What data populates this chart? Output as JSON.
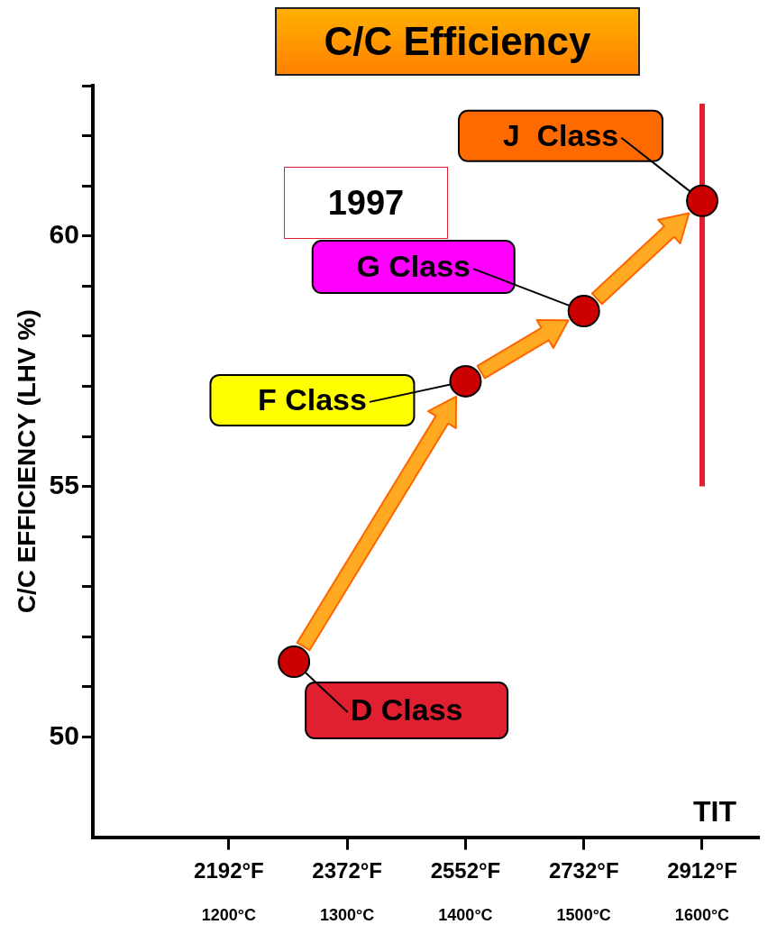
{
  "chart_data": {
    "type": "scatter",
    "title": "C/C Efficiency",
    "xlabel": "TIT",
    "ylabel": "C/C EFFICIENCY (LHV %)",
    "x": [
      1255,
      1400,
      1500,
      1600
    ],
    "series": [
      {
        "color": "#cc0000",
        "values": [
          51.5,
          57.1,
          58.5,
          60.7
        ]
      }
    ],
    "xlim": [
      1085,
      1648
    ],
    "xticks": [
      {
        "value": 1200,
        "label": "1200°C"
      },
      {
        "value": 1300,
        "label": "1300°C"
      },
      {
        "value": 1400,
        "label": "1400°C"
      },
      {
        "value": 1500,
        "label": "1500°C"
      },
      {
        "value": 1600,
        "label": "1600°C"
      }
    ],
    "x2lim": [
      1985,
      2998.4
    ],
    "x2ticks": [
      {
        "value": 2192,
        "label": "2192°F"
      },
      {
        "value": 2372,
        "label": "2372°F"
      },
      {
        "value": 2552,
        "label": "2552°F"
      },
      {
        "value": 2732,
        "label": "2732°F"
      },
      {
        "value": 2912,
        "label": "2912°F"
      }
    ],
    "ylim": [
      48,
      63
    ],
    "yticks": [
      50,
      {
        "value": 51,
        "label": null
      },
      {
        "value": 52,
        "label": null
      },
      {
        "value": 53,
        "label": null
      },
      {
        "value": 54,
        "label": null
      },
      55,
      {
        "value": 56,
        "label": null
      },
      {
        "value": 57,
        "label": null
      },
      {
        "value": 58,
        "label": null
      },
      {
        "value": 59,
        "label": null
      },
      60,
      {
        "value": 61,
        "label": null
      },
      {
        "value": 62,
        "label": null
      },
      {
        "value": 63,
        "label": null
      }
    ],
    "ref_lines": [
      {
        "axis": "x",
        "value": 1600,
        "color": "#e02030"
      }
    ],
    "annotations": [
      {
        "text": "D Class",
        "x": 1255,
        "y": 51.5
      },
      {
        "text": "F Class",
        "x": 1400,
        "y": 57.1
      },
      {
        "text": "G Class",
        "x": 1500,
        "y": 58.5
      },
      {
        "text": "J  Class",
        "x": 1600,
        "y": 60.7
      },
      "1997"
    ],
    "marker": "circle",
    "grid": false,
    "legend": false
  }
}
